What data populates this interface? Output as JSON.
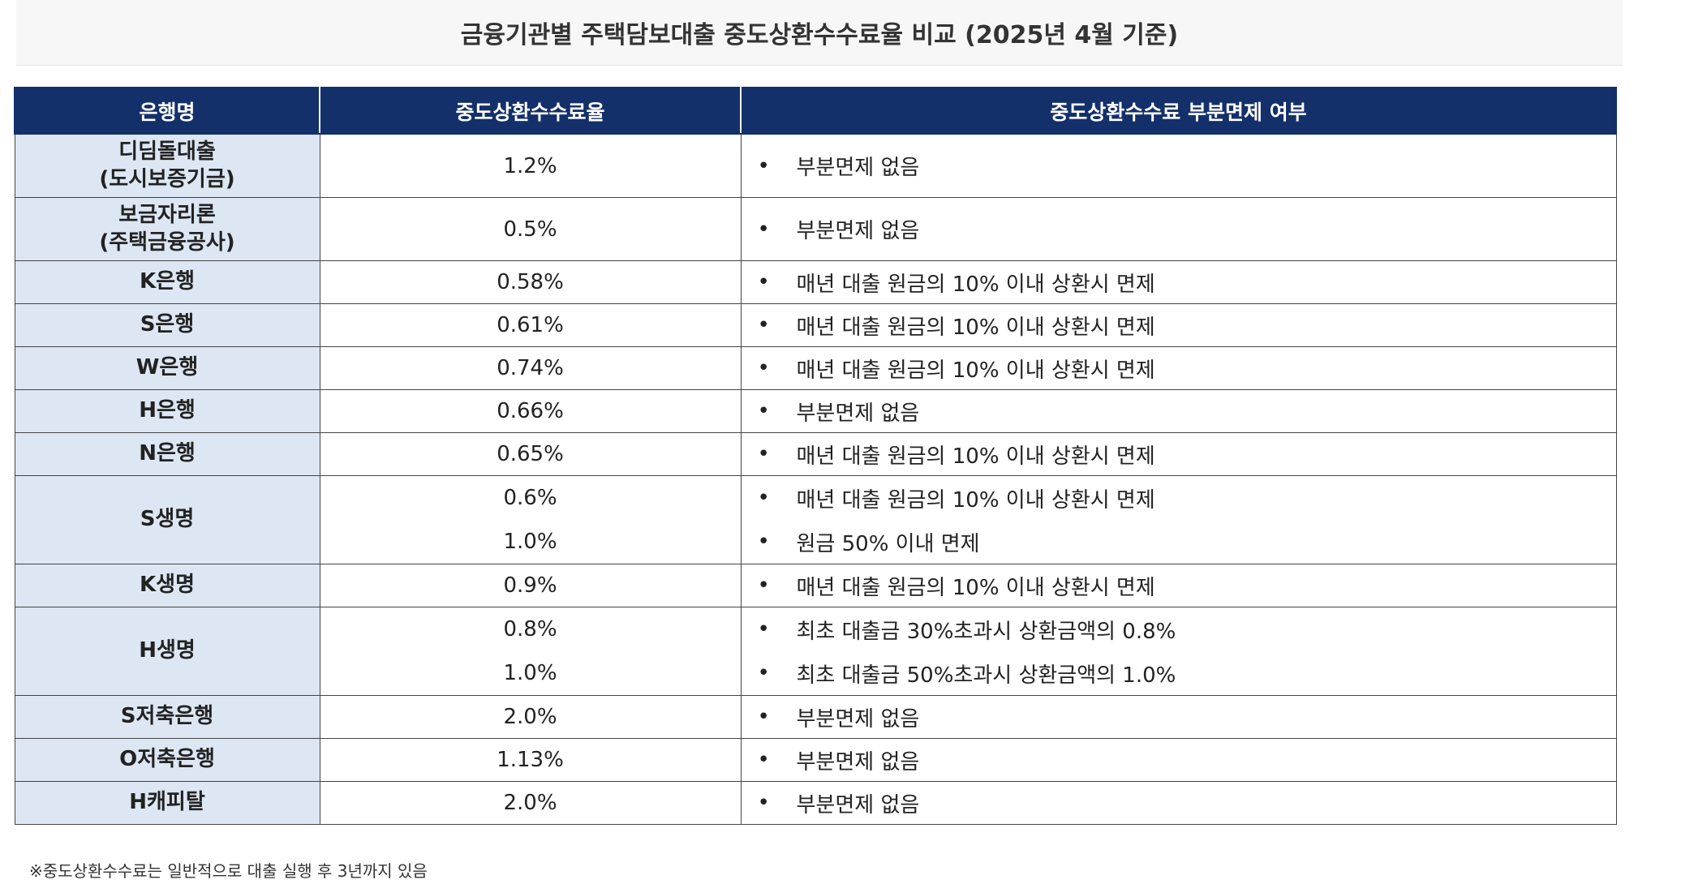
{
  "header": {
    "title": "금융기관별 주택담보대출 중도상환수수료율 비교 (2025년 4월 기준)"
  },
  "table": {
    "columns": [
      "은행명",
      "중도상환수수료율",
      "중도상환수수료 부분면제 여부"
    ],
    "rows": [
      {
        "name": "디딤돌대출\n(도시보증기금)",
        "rates": [
          "1.2%"
        ],
        "notes": [
          "부분면제 없음"
        ]
      },
      {
        "name": "보금자리론\n(주택금융공사)",
        "rates": [
          "0.5%"
        ],
        "notes": [
          "부분면제 없음"
        ]
      },
      {
        "name": "K은행",
        "rates": [
          "0.58%"
        ],
        "notes": [
          "매년 대출 원금의 10% 이내 상환시 면제"
        ]
      },
      {
        "name": "S은행",
        "rates": [
          "0.61%"
        ],
        "notes": [
          "매년 대출 원금의 10% 이내 상환시 면제"
        ]
      },
      {
        "name": "W은행",
        "rates": [
          "0.74%"
        ],
        "notes": [
          "매년 대출 원금의 10% 이내 상환시 면제"
        ]
      },
      {
        "name": "H은행",
        "rates": [
          "0.66%"
        ],
        "notes": [
          "부분면제 없음"
        ]
      },
      {
        "name": "N은행",
        "rates": [
          "0.65%"
        ],
        "notes": [
          "매년 대출 원금의 10% 이내 상환시 면제"
        ]
      },
      {
        "name": "S생명",
        "rates": [
          "0.6%",
          "1.0%"
        ],
        "notes": [
          "매년 대출 원금의 10% 이내 상환시 면제",
          "원금 50% 이내 면제"
        ]
      },
      {
        "name": "K생명",
        "rates": [
          "0.9%"
        ],
        "notes": [
          "매년 대출 원금의 10% 이내 상환시 면제"
        ]
      },
      {
        "name": "H생명",
        "rates": [
          "0.8%",
          "1.0%"
        ],
        "notes": [
          "최초 대출금 30%초과시 상환금액의 0.8%",
          "최초 대출금 50%초과시 상환금액의 1.0%"
        ]
      },
      {
        "name": "S저축은행",
        "rates": [
          "2.0%"
        ],
        "notes": [
          "부분면제 없음"
        ]
      },
      {
        "name": "O저축은행",
        "rates": [
          "1.13%"
        ],
        "notes": [
          "부분면제 없음"
        ]
      },
      {
        "name": "H캐피탈",
        "rates": [
          "2.0%"
        ],
        "notes": [
          "부분면제 없음"
        ]
      }
    ]
  },
  "footnote": "※중도상환수수료는 일반적으로 대출 실행 후 3년까지 있음"
}
